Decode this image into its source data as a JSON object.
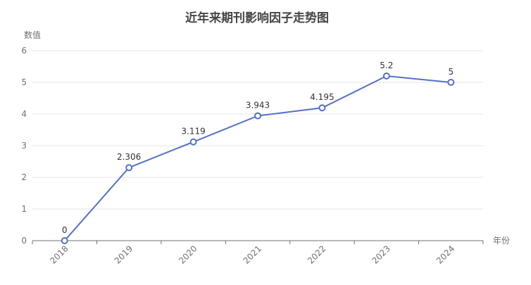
{
  "chart_data": {
    "type": "line",
    "title": "近年来期刊影响因子走势图",
    "xlabel": "年份",
    "ylabel": "数值",
    "categories": [
      "2018",
      "2019",
      "2020",
      "2021",
      "2022",
      "2023",
      "2024"
    ],
    "series": [
      {
        "values": [
          0,
          2.306,
          3.119,
          3.943,
          4.195,
          5.2,
          5
        ]
      }
    ],
    "ylim": [
      0,
      6
    ],
    "yticks": [
      0,
      1,
      2,
      3,
      4,
      5,
      6
    ],
    "grid": true,
    "colors": {
      "series": "#5470c6"
    }
  }
}
